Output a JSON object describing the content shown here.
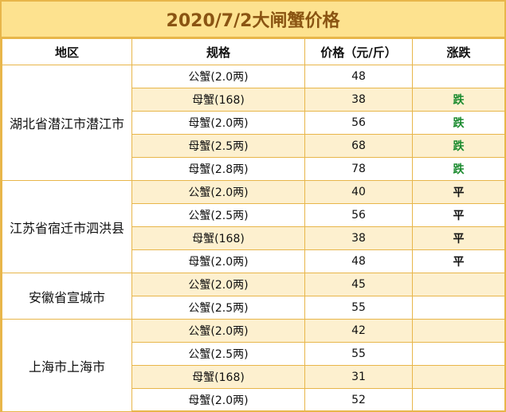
{
  "title": "2020/7/2大闸蟹价格",
  "headers": {
    "region": "地区",
    "spec": "规格",
    "price": "价格（元/斤）",
    "trend": "涨跌"
  },
  "groups": [
    {
      "region": "湖北省潜江市潜江市",
      "rows": [
        {
          "spec": "公蟹(2.0两)",
          "price": "48",
          "trend": "",
          "alt": false
        },
        {
          "spec": "母蟹(168)",
          "price": "38",
          "trend": "跌",
          "alt": true
        },
        {
          "spec": "母蟹(2.0两)",
          "price": "56",
          "trend": "跌",
          "alt": false
        },
        {
          "spec": "母蟹(2.5两)",
          "price": "68",
          "trend": "跌",
          "alt": true
        },
        {
          "spec": "母蟹(2.8两)",
          "price": "78",
          "trend": "跌",
          "alt": false
        }
      ]
    },
    {
      "region": "江苏省宿迁市泗洪县",
      "rows": [
        {
          "spec": "公蟹(2.0两)",
          "price": "40",
          "trend": "平",
          "alt": true
        },
        {
          "spec": "公蟹(2.5两)",
          "price": "56",
          "trend": "平",
          "alt": false
        },
        {
          "spec": "母蟹(168)",
          "price": "38",
          "trend": "平",
          "alt": true
        },
        {
          "spec": "母蟹(2.0两)",
          "price": "48",
          "trend": "平",
          "alt": false
        }
      ]
    },
    {
      "region": "安徽省宣城市",
      "rows": [
        {
          "spec": "公蟹(2.0两)",
          "price": "45",
          "trend": "",
          "alt": true
        },
        {
          "spec": "公蟹(2.5两)",
          "price": "55",
          "trend": "",
          "alt": false
        }
      ]
    },
    {
      "region": "上海市上海市",
      "rows": [
        {
          "spec": "公蟹(2.0两)",
          "price": "42",
          "trend": "",
          "alt": true
        },
        {
          "spec": "公蟹(2.5两)",
          "price": "55",
          "trend": "",
          "alt": false
        },
        {
          "spec": "母蟹(168)",
          "price": "31",
          "trend": "",
          "alt": true
        },
        {
          "spec": "母蟹(2.0两)",
          "price": "52",
          "trend": "",
          "alt": false
        }
      ]
    }
  ],
  "colors": {
    "border": "#e8b64a",
    "title_bg": "#fde28f",
    "title_text": "#8a5412",
    "alt_row": "#fdf0cf",
    "down": "#1a8a2e"
  }
}
